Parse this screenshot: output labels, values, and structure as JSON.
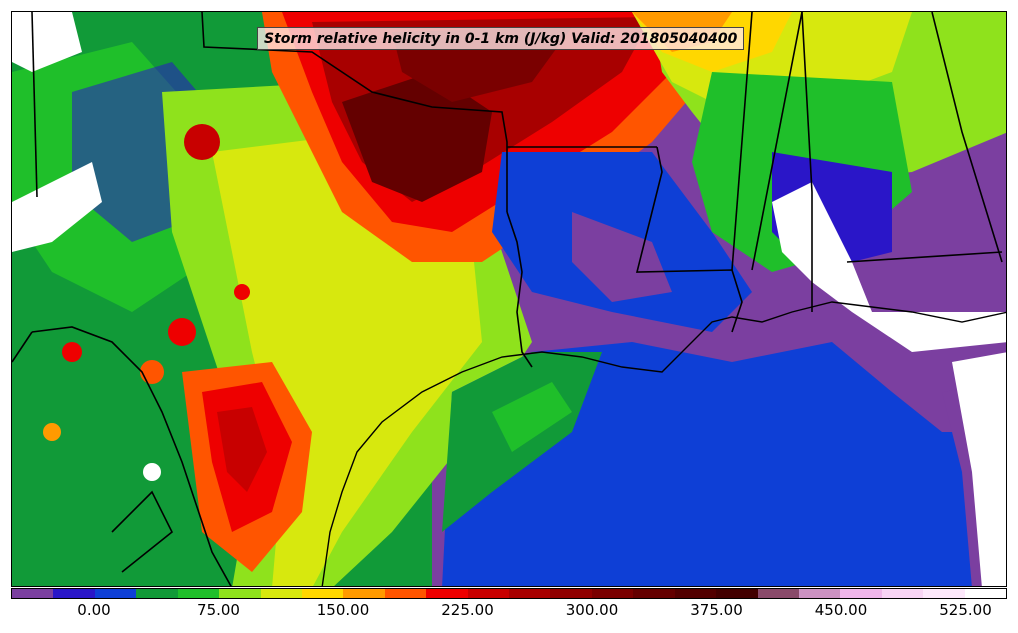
{
  "title": "Storm relative helicity in 0-1 km (J/kg) Valid: 201805040400",
  "colorbar": {
    "levels": [
      -50,
      -25,
      0,
      25,
      50,
      75,
      100,
      125,
      150,
      175,
      200,
      225,
      250,
      275,
      300,
      325,
      350,
      375,
      400,
      425,
      450,
      475,
      500,
      525,
      550
    ],
    "colors": [
      "#7b3fa0",
      "#2a16c8",
      "#0e3fd6",
      "#119a38",
      "#1fbf2a",
      "#8fe21c",
      "#d7e80e",
      "#ffd700",
      "#ff9a00",
      "#ff5500",
      "#ee0000",
      "#c80000",
      "#a80000",
      "#900000",
      "#7a0000",
      "#640000",
      "#520000",
      "#420000",
      "#8a4a6a",
      "#cc92c2",
      "#f0b6ea",
      "#f8d4f4",
      "#fde8fb",
      "#ffffff"
    ],
    "tick_labels": [
      "0.00",
      "75.00",
      "150.00",
      "225.00",
      "300.00",
      "375.00",
      "450.00",
      "525.00"
    ],
    "tick_values": [
      0,
      75,
      150,
      225,
      300,
      375,
      450,
      525
    ]
  },
  "colors": {
    "border": "#000000",
    "water_low": "#0e3fd6",
    "background": "#7b3fa0"
  }
}
